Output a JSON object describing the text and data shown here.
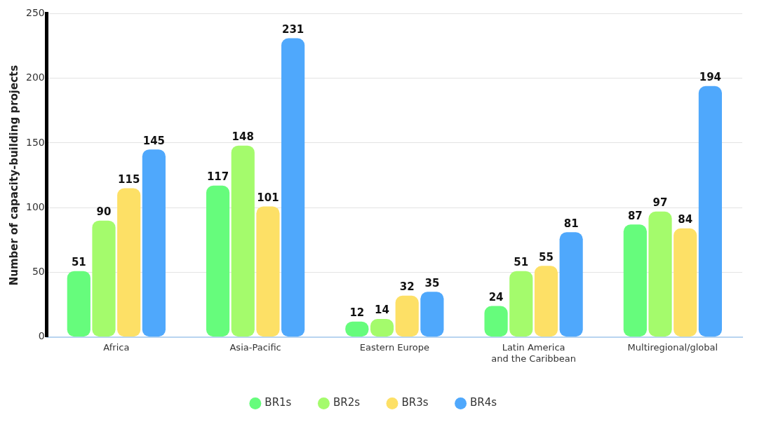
{
  "chart_data": {
    "type": "bar",
    "ylabel": "Number of capacity-building projects",
    "categories": [
      "Africa",
      "Asia-Pacific",
      "Eastern Europe",
      "Latin America\nand the Caribbean",
      "Multiregional/global"
    ],
    "series": [
      {
        "name": "BR1s",
        "color": "#66fc7c",
        "values": [
          51,
          117,
          12,
          24,
          87
        ]
      },
      {
        "name": "BR2s",
        "color": "#a4fb6c",
        "values": [
          90,
          148,
          14,
          51,
          97
        ]
      },
      {
        "name": "BR3s",
        "color": "#fde066",
        "values": [
          115,
          101,
          32,
          55,
          84
        ]
      },
      {
        "name": "BR4s",
        "color": "#4fa8fc",
        "values": [
          145,
          231,
          35,
          81,
          194
        ]
      }
    ],
    "ylim": [
      0,
      250
    ],
    "yticks": [
      0,
      50,
      100,
      150,
      200,
      250
    ],
    "grid": "y",
    "legend": "bottom",
    "data_labels": true
  }
}
